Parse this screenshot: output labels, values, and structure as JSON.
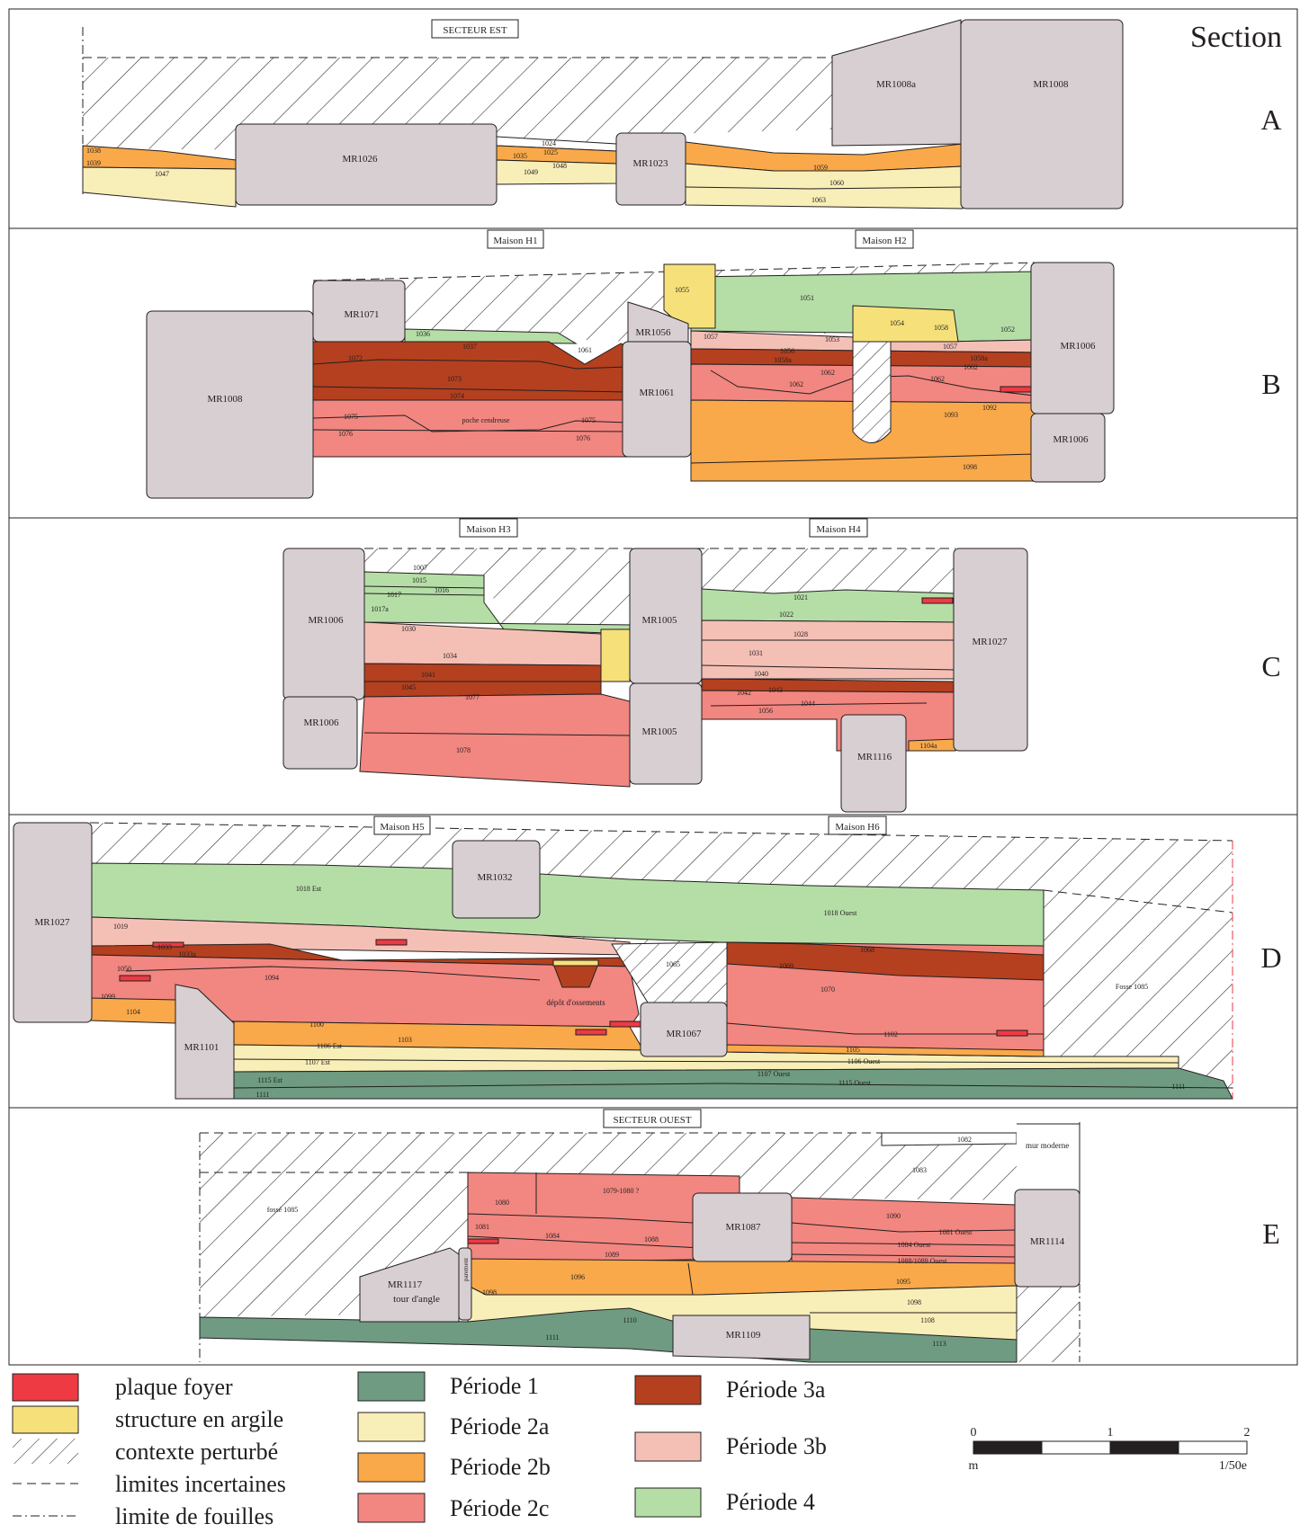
{
  "section_heading": "Section",
  "colors": {
    "p1": "#6e9b81",
    "p2a": "#f8eeb8",
    "p2b": "#f9a94a",
    "p2c": "#f28680",
    "p3a": "#b4401f",
    "p3b": "#f4c0b6",
    "p4": "#b4dea6",
    "clay": "#f6e07a",
    "hearth": "#ee3a43",
    "wall": "#d7cfd1",
    "border": "#231f20"
  },
  "rows": [
    {
      "letter": "A",
      "sector": "SECTEUR EST",
      "walls": [
        "MR1026",
        "MR1023",
        "MR1008a",
        "MR1008"
      ],
      "layers": [
        "1038",
        "1039",
        "1047",
        "1024",
        "1025",
        "1035",
        "1048",
        "1049",
        "1059",
        "1060",
        "1063"
      ]
    },
    {
      "letter": "B",
      "houses": [
        "Maison H1",
        "Maison H2"
      ],
      "walls": [
        "MR1008",
        "MR1071",
        "MR1056",
        "MR1061",
        "MR1006",
        "MR1006"
      ],
      "layers": [
        "1055",
        "1051",
        "1054",
        "1058",
        "1052",
        "1036",
        "1037",
        "1061",
        "1057",
        "1053",
        "1056",
        "1058a",
        "1057",
        "1058a",
        "1072",
        "1073",
        "1074",
        "1062",
        "1062",
        "1062",
        "1062",
        "1075",
        "poche cendreuse",
        "1075",
        "1076",
        "1076",
        "1093",
        "1092",
        "1098"
      ]
    },
    {
      "letter": "C",
      "houses": [
        "Maison H3",
        "Maison H4"
      ],
      "walls": [
        "MR1006",
        "MR1006",
        "MR1005",
        "MR1005",
        "MR1027",
        "MR1116"
      ],
      "layers": [
        "1007",
        "1015",
        "1016",
        "1017",
        "1017a",
        "1030",
        "1034",
        "1041",
        "1045",
        "1077",
        "1078",
        "1021",
        "1022",
        "1028",
        "1031",
        "1040",
        "1042",
        "1043",
        "1044",
        "1056",
        "1104a"
      ]
    },
    {
      "letter": "D",
      "houses": [
        "Maison H5",
        "Maison H6"
      ],
      "walls": [
        "MR1027",
        "MR1032",
        "MR1101",
        "MR1067"
      ],
      "layers": [
        "1018 Est",
        "1018 Ouest",
        "1019",
        "1033",
        "1033a",
        "1094",
        "1050",
        "1099",
        "1104",
        "1100",
        "1103",
        "1106 Est",
        "1107 Est",
        "1115 Est",
        "1111",
        "1065",
        "dépôt d'ossements",
        "1068",
        "1069",
        "1070",
        "1102",
        "1105",
        "1106 Ouest",
        "1107 Ouest",
        "1115 Ouest",
        "1111",
        "Fosse 1085"
      ]
    },
    {
      "letter": "E",
      "sector": "SECTEUR OUEST",
      "walls": [
        "MR1117",
        "tour d'angle",
        "parement",
        "MR1087",
        "MR1114",
        "MR1109"
      ],
      "layers": [
        "1082",
        "mur moderne",
        "1083",
        "fossé 1085",
        "1080",
        "1079-1080 ?",
        "1081",
        "1084",
        "1088",
        "1089",
        "1090",
        "1081 Ouest",
        "1084 Ouest",
        "1088/1089 Ouest",
        "1096",
        "1095",
        "1098",
        "1098",
        "1108",
        "1110",
        "1111",
        "1113"
      ]
    }
  ],
  "legend": {
    "symbols": [
      {
        "label": "plaque foyer",
        "icon": "hearth-swatch"
      },
      {
        "label": "structure en argile",
        "icon": "clay-swatch"
      },
      {
        "label": "contexte perturbé",
        "icon": "hatch-swatch"
      },
      {
        "label": "limites incertaines",
        "icon": "dashed-line"
      },
      {
        "label": "limite de fouilles",
        "icon": "dash-dot-line"
      }
    ],
    "periods_left": [
      {
        "label": "Période 1",
        "color_key": "p1"
      },
      {
        "label": "Période 2a",
        "color_key": "p2a"
      },
      {
        "label": "Période 2b",
        "color_key": "p2b"
      },
      {
        "label": "Période 2c",
        "color_key": "p2c"
      }
    ],
    "periods_right": [
      {
        "label": "Période 3a",
        "color_key": "p3a"
      },
      {
        "label": "Période 3b",
        "color_key": "p3b"
      },
      {
        "label": "Période 4",
        "color_key": "p4"
      }
    ]
  },
  "scale": {
    "ticks": [
      "0",
      "1",
      "2"
    ],
    "unit": "m",
    "ratio": "1/50e"
  }
}
